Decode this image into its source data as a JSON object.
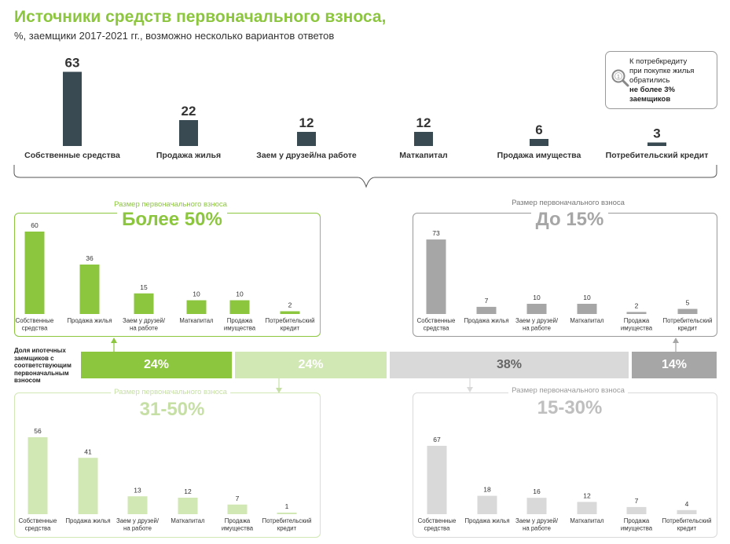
{
  "header": {
    "title": "Источники средств первоначального взноса,",
    "subtitle": "%, заемщики 2017-2021 гг., возможно несколько вариантов ответов"
  },
  "callout": {
    "line1": "К потребкредиту",
    "line2": "при покупке жилья",
    "line3": "обратились",
    "line4": "не более 3%",
    "line5": "заемщиков"
  },
  "shares": {
    "label": "Доля ипотечных заемщиков с соответствующим первоначальным взносом",
    "values": [
      "24%",
      "24%",
      "38%",
      "14%"
    ]
  },
  "colors": {
    "dark": "#3a4a52",
    "green": "#8cc63f",
    "light_green": "#d1e7b4",
    "gray": "#a6a6a6",
    "light_gray": "#d9d9d9"
  },
  "chart_data": [
    {
      "type": "bar",
      "id": "overall",
      "categories": [
        "Собственные средства",
        "Продажа жилья",
        "Заем у друзей/на работе",
        "Маткапитал",
        "Продажа имущества",
        "Потребительский кредит"
      ],
      "values": [
        63,
        22,
        12,
        12,
        6,
        3
      ],
      "color": "#3a4a52"
    },
    {
      "type": "bar",
      "id": "over50",
      "label": "Размер первоначального взноса",
      "title": "Более 50%",
      "share": "24%",
      "color": "#8cc63f",
      "categories": [
        [
          "Собственные",
          "средства"
        ],
        [
          "Продажа жилья"
        ],
        [
          "Заем у друзей/",
          "на работе"
        ],
        [
          "Маткапитал"
        ],
        [
          "Продажа",
          "имущества"
        ],
        [
          "Потребительский",
          "кредит"
        ]
      ],
      "values": [
        60,
        36,
        15,
        10,
        10,
        2
      ]
    },
    {
      "type": "bar",
      "id": "31to50",
      "label": "Размер первоначального взноса",
      "title": "31-50%",
      "share": "24%",
      "color": "#d1e7b4",
      "categories": [
        [
          "Собственные",
          "средства"
        ],
        [
          "Продажа жилья"
        ],
        [
          "Заем у друзей/",
          "на работе"
        ],
        [
          "Маткапитал"
        ],
        [
          "Продажа",
          "имущества"
        ],
        [
          "Потребительский",
          "кредит"
        ]
      ],
      "values": [
        56,
        41,
        13,
        12,
        7,
        1
      ]
    },
    {
      "type": "bar",
      "id": "upto15",
      "label": "Размер первоначального взноса",
      "title": "До 15%",
      "share": "14%",
      "color": "#a6a6a6",
      "categories": [
        [
          "Собственные",
          "средства"
        ],
        [
          "Продажа жилья"
        ],
        [
          "Заем у друзей/",
          "на работе"
        ],
        [
          "Маткапитал"
        ],
        [
          "Продажа",
          "имущества"
        ],
        [
          "Потребительский",
          "кредит"
        ]
      ],
      "values": [
        73,
        7,
        10,
        10,
        2,
        5
      ]
    },
    {
      "type": "bar",
      "id": "15to30",
      "label": "Размер первоначального взноса",
      "title": "15-30%",
      "share": "38%",
      "color": "#d9d9d9",
      "categories": [
        [
          "Собственные",
          "средства"
        ],
        [
          "Продажа жилья"
        ],
        [
          "Заем у друзей/",
          "на работе"
        ],
        [
          "Маткапитал"
        ],
        [
          "Продажа",
          "имущества"
        ],
        [
          "Потребительский",
          "кредит"
        ]
      ],
      "values": [
        67,
        18,
        16,
        12,
        7,
        4
      ]
    }
  ]
}
